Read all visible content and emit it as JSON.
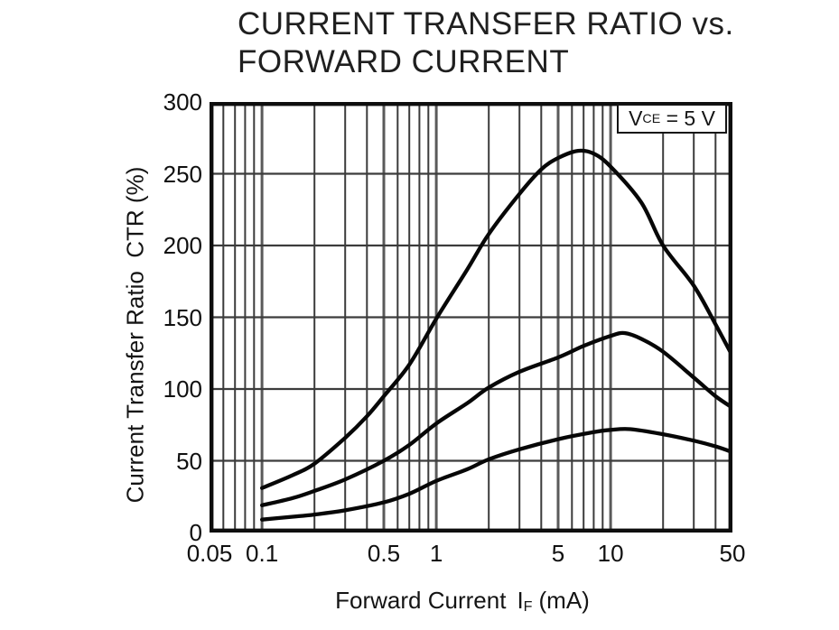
{
  "title": {
    "line1": "CURRENT TRANSFER RATIO vs.",
    "line2": "FORWARD CURRENT"
  },
  "axes": {
    "y_title": "Current Transfer Ratio  CTR (%)",
    "x_title_text": "Forward Current",
    "x_title_symbol": "I",
    "x_title_symbol_sub": "F",
    "x_title_unit": "(mA)",
    "x_tick_labels": [
      "0.05",
      "0.1",
      "0.5",
      "1",
      "5",
      "10",
      "50"
    ],
    "y_tick_labels": [
      "0",
      "50",
      "100",
      "150",
      "200",
      "250",
      "300"
    ]
  },
  "annotation": {
    "symbol": "V",
    "symbol_sub": "CE",
    "rest": " = 5 V"
  },
  "colors": {
    "background": "#ffffff",
    "ink": "#141414",
    "curve": "#070707",
    "grid_minor": "#3c3c3c",
    "grid_major": "#5a5a5a",
    "border": "#0e0e0e"
  },
  "chart_data": {
    "type": "line",
    "title": "CURRENT TRANSFER RATIO vs. FORWARD CURRENT",
    "xlabel": "Forward Current IF (mA)",
    "ylabel": "Current Transfer Ratio CTR (%)",
    "annotation": "VCE = 5 V",
    "x_scale": "log",
    "xlim": [
      0.05,
      50
    ],
    "ylim": [
      0,
      300
    ],
    "x_ticks": [
      0.05,
      0.1,
      0.5,
      1,
      5,
      10,
      50
    ],
    "y_ticks": [
      0,
      50,
      100,
      150,
      200,
      250,
      300
    ],
    "grid": true,
    "legend": "none",
    "x_gridlines": {
      "minor": [
        0.06,
        0.07,
        0.08,
        0.09,
        0.2,
        0.3,
        0.4,
        0.6,
        0.7,
        0.8,
        0.9,
        2,
        3,
        4,
        6,
        7,
        8,
        9,
        20,
        30,
        40
      ],
      "major": [
        0.1,
        0.5,
        1,
        5,
        10
      ]
    },
    "y_gridlines": [
      50,
      100,
      150,
      200,
      250
    ],
    "series": [
      {
        "name": "curve-1-high",
        "points": [
          [
            0.1,
            31
          ],
          [
            0.15,
            40
          ],
          [
            0.2,
            48
          ],
          [
            0.3,
            66
          ],
          [
            0.4,
            81
          ],
          [
            0.5,
            95
          ],
          [
            0.7,
            117
          ],
          [
            1,
            149
          ],
          [
            1.5,
            183
          ],
          [
            2,
            208
          ],
          [
            3,
            236
          ],
          [
            4,
            253
          ],
          [
            5,
            261
          ],
          [
            6.5,
            266
          ],
          [
            8,
            264
          ],
          [
            10,
            255
          ],
          [
            15,
            230
          ],
          [
            20,
            200
          ],
          [
            30,
            172
          ],
          [
            40,
            145
          ],
          [
            50,
            123
          ]
        ]
      },
      {
        "name": "curve-2-middle",
        "points": [
          [
            0.1,
            19
          ],
          [
            0.15,
            24
          ],
          [
            0.2,
            29
          ],
          [
            0.3,
            37
          ],
          [
            0.5,
            50
          ],
          [
            0.7,
            61
          ],
          [
            1,
            76
          ],
          [
            1.5,
            90
          ],
          [
            2,
            101
          ],
          [
            3,
            112
          ],
          [
            5,
            122
          ],
          [
            7,
            130
          ],
          [
            10,
            137
          ],
          [
            12,
            139
          ],
          [
            15,
            135
          ],
          [
            20,
            126
          ],
          [
            30,
            108
          ],
          [
            40,
            95
          ],
          [
            50,
            87
          ]
        ]
      },
      {
        "name": "curve-3-low",
        "points": [
          [
            0.1,
            9
          ],
          [
            0.15,
            11
          ],
          [
            0.2,
            12.5
          ],
          [
            0.3,
            15.5
          ],
          [
            0.5,
            21
          ],
          [
            0.7,
            27
          ],
          [
            1,
            36
          ],
          [
            1.5,
            44
          ],
          [
            2,
            51
          ],
          [
            3,
            58
          ],
          [
            5,
            65
          ],
          [
            8,
            70
          ],
          [
            10,
            71.5
          ],
          [
            13,
            72
          ],
          [
            20,
            68.5
          ],
          [
            30,
            64
          ],
          [
            40,
            60
          ],
          [
            50,
            56
          ]
        ]
      }
    ]
  }
}
